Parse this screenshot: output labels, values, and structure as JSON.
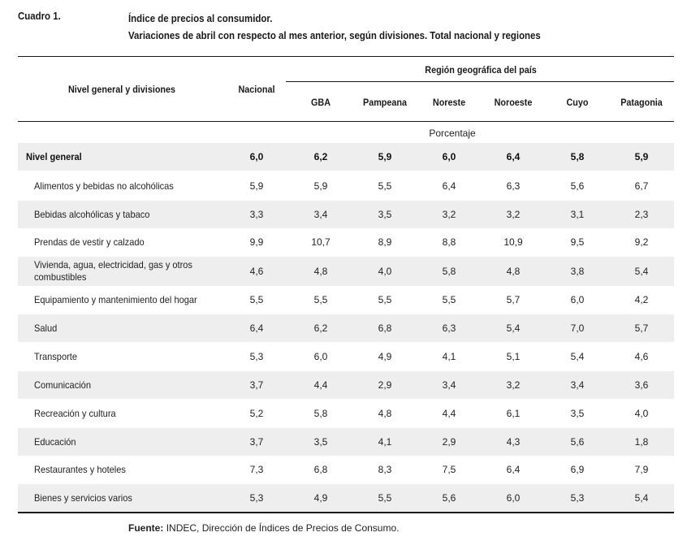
{
  "table_label": "Cuadro 1.",
  "title": "Índice de precios al consumidor.",
  "subtitle": "Variaciones de abril con respecto al mes anterior, según divisiones. Total nacional y regiones",
  "header": {
    "row_header": "Nivel general y divisiones",
    "national": "Nacional",
    "region_group": "Región geográfica del país",
    "regions": [
      "GBA",
      "Pampeana",
      "Noreste",
      "Noroeste",
      "Cuyo",
      "Patagonia"
    ],
    "unit": "Porcentaje"
  },
  "rows": [
    {
      "label": "Nivel general",
      "values": [
        "6,0",
        "6,2",
        "5,9",
        "6,0",
        "6,4",
        "5,8",
        "5,9"
      ],
      "bold": true
    },
    {
      "label": "Alimentos y bebidas no alcohólicas",
      "values": [
        "5,9",
        "5,9",
        "5,5",
        "6,4",
        "6,3",
        "5,6",
        "6,7"
      ]
    },
    {
      "label": "Bebidas alcohólicas y tabaco",
      "values": [
        "3,3",
        "3,4",
        "3,5",
        "3,2",
        "3,2",
        "3,1",
        "2,3"
      ]
    },
    {
      "label": "Prendas de vestir y calzado",
      "values": [
        "9,9",
        "10,7",
        "8,9",
        "8,8",
        "10,9",
        "9,5",
        "9,2"
      ]
    },
    {
      "label": "Vivienda, agua, electricidad, gas y otros combustibles",
      "values": [
        "4,6",
        "4,8",
        "4,0",
        "5,8",
        "4,8",
        "3,8",
        "5,4"
      ]
    },
    {
      "label": "Equipamiento y mantenimiento del hogar",
      "values": [
        "5,5",
        "5,5",
        "5,5",
        "5,5",
        "5,7",
        "6,0",
        "4,2"
      ]
    },
    {
      "label": "Salud",
      "values": [
        "6,4",
        "6,2",
        "6,8",
        "6,3",
        "5,4",
        "7,0",
        "5,7"
      ]
    },
    {
      "label": "Transporte",
      "values": [
        "5,3",
        "6,0",
        "4,9",
        "4,1",
        "5,1",
        "5,4",
        "4,6"
      ]
    },
    {
      "label": "Comunicación",
      "values": [
        "3,7",
        "4,4",
        "2,9",
        "3,4",
        "3,2",
        "3,4",
        "3,6"
      ]
    },
    {
      "label": "Recreación y cultura",
      "values": [
        "5,2",
        "5,8",
        "4,8",
        "4,4",
        "6,1",
        "3,5",
        "4,0"
      ]
    },
    {
      "label": "Educación",
      "values": [
        "3,7",
        "3,5",
        "4,1",
        "2,9",
        "4,3",
        "5,6",
        "1,8"
      ]
    },
    {
      "label": "Restaurantes y hoteles",
      "values": [
        "7,3",
        "6,8",
        "8,3",
        "7,5",
        "6,4",
        "6,9",
        "7,9"
      ]
    },
    {
      "label": "Bienes y servicios varios",
      "values": [
        "5,3",
        "4,9",
        "5,5",
        "5,6",
        "6,0",
        "5,3",
        "5,4"
      ]
    }
  ],
  "source_label": "Fuente:",
  "source_text": "INDEC, Dirección de Índices de Precios de Consumo."
}
